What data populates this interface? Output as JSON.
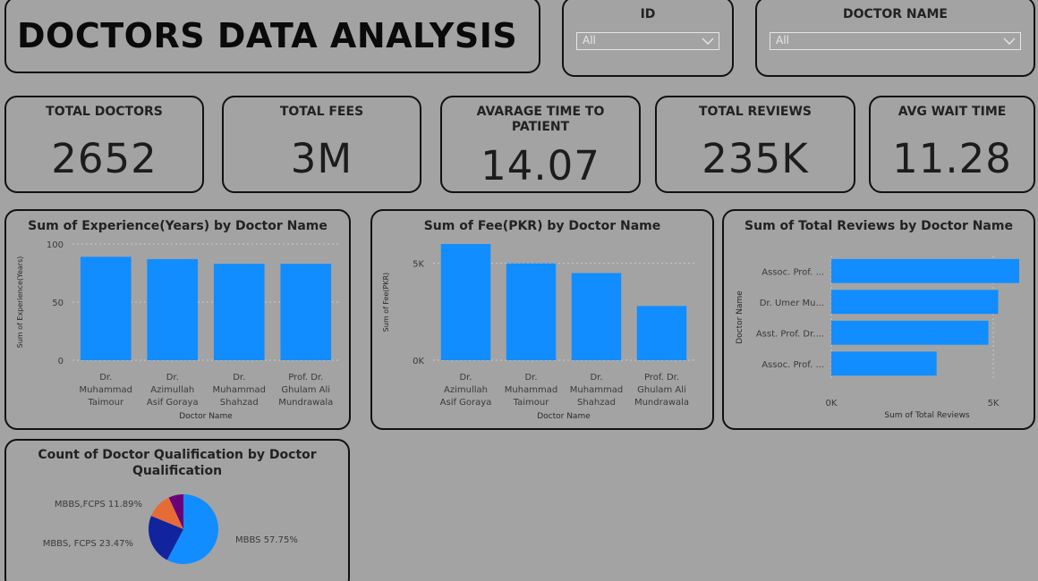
{
  "title": "DOCTORS DATA ANALYSIS",
  "slicers": [
    {
      "label": "ID",
      "value": "All"
    },
    {
      "label": "DOCTOR NAME",
      "value": "All"
    }
  ],
  "kpis": [
    {
      "label": "TOTAL DOCTORS",
      "value": "2652"
    },
    {
      "label": "TOTAL FEES",
      "value": "3M"
    },
    {
      "label": "AVARAGE TIME TO PATIENT",
      "value": "14.07"
    },
    {
      "label": "TOTAL REVIEWS",
      "value": "235K"
    },
    {
      "label": "AVG WAIT TIME",
      "value": "11.28"
    }
  ],
  "colors": {
    "bar": "#118dff",
    "pie": [
      "#118dff",
      "#12239e",
      "#e66c37",
      "#6b007b"
    ]
  },
  "chart_data": [
    {
      "type": "bar",
      "title": "Sum of Experience(Years) by Doctor Name",
      "xlabel": "Doctor Name",
      "ylabel": "Sum of Experience(Years)",
      "categories": [
        [
          "Dr.",
          "Muhammad",
          "Taimour"
        ],
        [
          "Dr.",
          "Azimullah",
          "Asif Goraya"
        ],
        [
          "Dr.",
          "Muhammad",
          "Shahzad"
        ],
        [
          "Prof. Dr.",
          "Ghulam Ali",
          "Mundrawala"
        ]
      ],
      "values": [
        89,
        87,
        83,
        83
      ],
      "ylim": [
        0,
        100
      ],
      "yticks": [
        {
          "v": 0,
          "t": "0"
        },
        {
          "v": 50,
          "t": "50"
        },
        {
          "v": 100,
          "t": "100"
        }
      ]
    },
    {
      "type": "bar",
      "title": "Sum of Fee(PKR) by Doctor Name",
      "xlabel": "Doctor Name",
      "ylabel": "Sum of Fee(PKR)",
      "categories": [
        [
          "Dr.",
          "Azimullah",
          "Asif Goraya"
        ],
        [
          "Dr.",
          "Muhammad",
          "Taimour"
        ],
        [
          "Dr.",
          "Muhammad",
          "Shahzad"
        ],
        [
          "Prof. Dr.",
          "Ghulam Ali",
          "Mundrawala"
        ]
      ],
      "values": [
        6000,
        5000,
        4500,
        2800
      ],
      "ylim": [
        0,
        6000
      ],
      "yticks": [
        {
          "v": 0,
          "t": "0K"
        },
        {
          "v": 5000,
          "t": "5K"
        }
      ]
    },
    {
      "type": "hbar",
      "title": "Sum of Total Reviews by Doctor Name",
      "xlabel": "Sum of Total Reviews",
      "ylabel": "Doctor Name",
      "categories": [
        "Assoc. Prof. ...",
        "Dr. Umer Mu...",
        "Asst. Prof. Dr....",
        "Assoc. Prof. ..."
      ],
      "values": [
        5800,
        5150,
        4850,
        3250
      ],
      "xlim": [
        0,
        5800
      ],
      "xticks": [
        {
          "v": 0,
          "t": "0K"
        },
        {
          "v": 5000,
          "t": "5K"
        }
      ]
    },
    {
      "type": "pie",
      "title": "Count of Doctor Qualification by Doctor Qualification",
      "slices": [
        {
          "label": "MBBS 57.75%",
          "value": 57.75
        },
        {
          "label": "MBBS, FCPS 23.47%",
          "value": 23.47
        },
        {
          "label": "MBBS,FCPS 11.89%",
          "value": 11.89
        },
        {
          "label": "",
          "value": 6.89
        }
      ]
    }
  ]
}
